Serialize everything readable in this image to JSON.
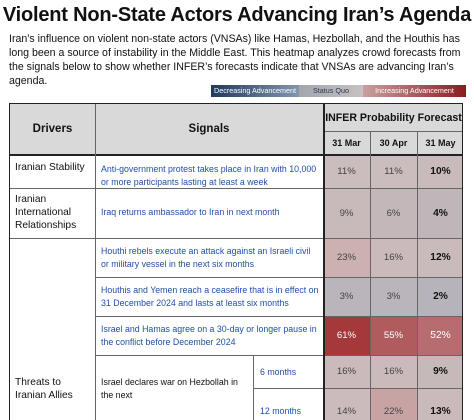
{
  "title": "Violent Non-State Actors Advancing Iran’s Agenda",
  "intro": "Iran’s influence on violent non-state actors (VNSAs) like Hamas, Hezbollah, and the Houthis has long been a source of instability in the Middle East. This heatmap analyzes crowd forecasts from the signals below to show whether INFER’s forecasts indicate that VNSAs are advancing Iran’s agenda.",
  "legend": {
    "decreasing": "Decreasing Advancement",
    "status_quo": "Status Quo",
    "increasing": "Increasing Advancement",
    "colors": {
      "decreasing": "#1f3a5f",
      "status_quo": "#b5b3b6",
      "increasing": "#8a1c20"
    }
  },
  "table": {
    "headers": {
      "drivers": "Drivers",
      "signals": "Signals",
      "forecast": "INFER Probability Forecast",
      "dates": [
        "31 Mar",
        "30 Apr",
        "31 May"
      ]
    },
    "drivers": [
      "Iranian Stability",
      "Iranian International Relationships",
      "Threats to Iranian Allies"
    ],
    "rows": [
      {
        "signal": "Anti-government protest takes place in Iran with 10,000 or more participants lasting at least a week",
        "values": [
          "11%",
          "11%",
          "10%"
        ]
      },
      {
        "signal": "Iraq returns ambassador to Iran in next month",
        "values": [
          "9%",
          "6%",
          "4%"
        ]
      },
      {
        "signal": "Houthi rebels execute an attack against an Israeli civil or military vessel in the next six months",
        "values": [
          "23%",
          "16%",
          "12%"
        ]
      },
      {
        "signal": "Houthis and Yemen reach a ceasefire that is in effect on 31 December 2024 and lasts at least six months",
        "values": [
          "3%",
          "3%",
          "2%"
        ]
      },
      {
        "signal": "Israel and Hamas agree on a 30-day or longer pause in the conflict before December 2024",
        "values": [
          "61%",
          "55%",
          "52%"
        ]
      },
      {
        "signal": "Israel declares war on Hezbollah in the next",
        "sub": [
          "6 months",
          "12 months"
        ],
        "values": [
          [
            "16%",
            "16%",
            "9%"
          ],
          [
            "14%",
            "22%",
            "13%"
          ]
        ]
      }
    ]
  }
}
